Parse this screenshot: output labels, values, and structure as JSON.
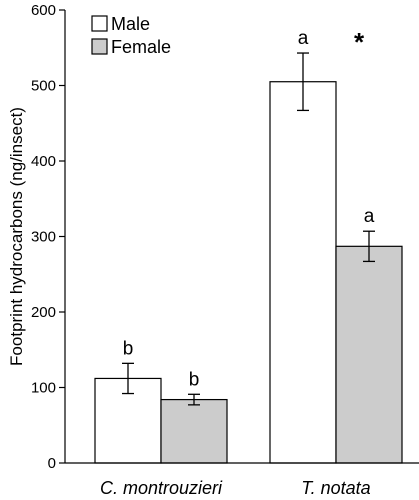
{
  "chart_data": {
    "type": "bar",
    "ylabel": "Footprint hydrocarbons (ng/insect)",
    "xlabel": "",
    "ylim": [
      0,
      600
    ],
    "yticks": [
      0,
      100,
      200,
      300,
      400,
      500,
      600
    ],
    "categories": [
      "C. montrouzieri",
      "T. notata"
    ],
    "series": [
      {
        "name": "Male",
        "color": "#ffffff",
        "values": [
          112,
          505
        ],
        "errors": [
          20,
          38
        ],
        "letters": [
          "b",
          "a"
        ]
      },
      {
        "name": "Female",
        "color": "#cccccc",
        "values": [
          84,
          287
        ],
        "errors": [
          7,
          20
        ],
        "letters": [
          "b",
          "a"
        ]
      }
    ],
    "annotations": [
      {
        "category": "T. notata",
        "text": "*"
      }
    ],
    "legend": "top-left",
    "grid": false
  }
}
